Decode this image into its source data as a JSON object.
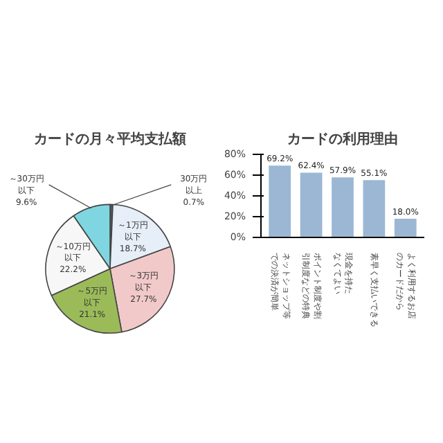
{
  "chart_data": [
    {
      "type": "pie",
      "title": "カードの月々平均支払額",
      "categories": [
        "30万円以上",
        "～1万円以下",
        "～3万円以下",
        "～5万円以下",
        "～10万円以下",
        "～30万円以下"
      ],
      "values": [
        0.7,
        18.7,
        27.7,
        21.1,
        22.2,
        9.6
      ],
      "value_labels": [
        "0.7%",
        "18.7%",
        "27.7%",
        "21.1%",
        "22.2%",
        "9.6%"
      ],
      "colors": [
        "#555555",
        "#e6eef8",
        "#f2c9c9",
        "#9bbb59",
        "#f7f7f7",
        "#7fd6e0"
      ]
    },
    {
      "type": "bar",
      "title": "カードの利用理由",
      "categories": [
        "ネットショップ等での決済が簡単",
        "ポイント制度や割引制度などの特典",
        "現金を持たなくてよい",
        "素早く支払いできる",
        "よく利用するお店のカードだから"
      ],
      "values": [
        69.2,
        62.4,
        57.9,
        55.1,
        18.0
      ],
      "value_labels": [
        "69.2%",
        "62.4%",
        "57.9%",
        "55.1%",
        "18.0%"
      ],
      "color": "#9bb7d4",
      "ylim": [
        0,
        80
      ],
      "yticks": [
        {
          "value": 0,
          "label": "0%"
        },
        {
          "value": 20,
          "label": "20%"
        },
        {
          "value": 40,
          "label": "40%"
        },
        {
          "value": 60,
          "label": "60%"
        },
        {
          "value": 80,
          "label": "80%"
        }
      ],
      "grid": false
    }
  ]
}
